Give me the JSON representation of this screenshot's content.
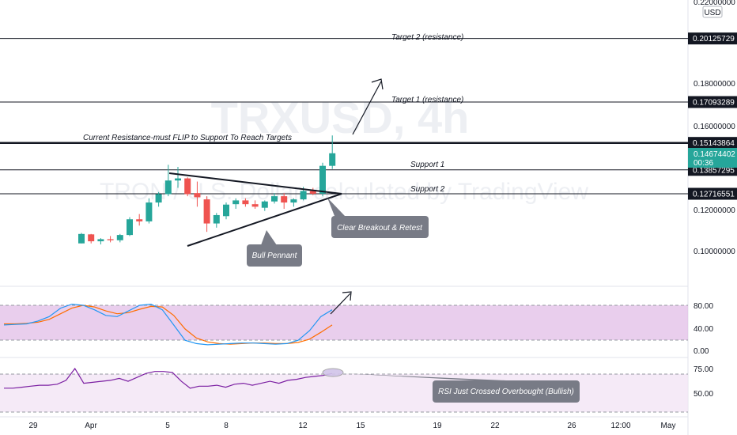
{
  "watermark": {
    "symbol": "TRXUSD, 4h",
    "subtitle": "TRON / U.S. Dollar, calculated by TradingView"
  },
  "price_axis": {
    "currency": "USD",
    "top_partial": "0.22000000",
    "labels": [
      "0.18000000",
      "0.16000000",
      "0.12000000",
      "0.10000000"
    ],
    "tagged_levels": [
      "0.20125729",
      "0.17093289",
      "0.15143864",
      "0.13857295",
      "0.12716551"
    ],
    "current_price": "0.14674402",
    "countdown": "00:36"
  },
  "stoch_axis": {
    "labels": [
      "80.00",
      "40.00",
      "0.00"
    ]
  },
  "rsi_axis": {
    "labels": [
      "75.00",
      "50.00"
    ]
  },
  "time_axis": {
    "labels": [
      "29",
      "Apr",
      "5",
      "8",
      "12",
      "15",
      "19",
      "22",
      "26",
      "12:00",
      "May"
    ]
  },
  "annotations": {
    "target2": "Target 2 (resistance)",
    "target1": "Target 1 (resistance)",
    "resistance": "Current Resistance-must FLIP to Support To Reach Targets",
    "support1": "Support 1",
    "support2": "Support 2",
    "breakout": "Clear Breakout & Retest",
    "pennant": "Bull Pennant",
    "rsi_note": "RSI Just Crossed Overbought (Bullish)"
  },
  "colors": {
    "up": "#26a69a",
    "down": "#ef5350",
    "stoch_k": "#2196f3",
    "stoch_d": "#ff6d00",
    "rsi": "#7b1fa2",
    "band": "#e1bee7",
    "callout": "#787b86",
    "teal_tag": "#26a69a"
  },
  "chart_data": {
    "type": "candlestick",
    "candles": [
      {
        "o": 0.1035,
        "h": 0.1085,
        "l": 0.1035,
        "c": 0.108
      },
      {
        "o": 0.1078,
        "h": 0.108,
        "l": 0.1035,
        "c": 0.1045
      },
      {
        "o": 0.1045,
        "h": 0.106,
        "l": 0.103,
        "c": 0.1055
      },
      {
        "o": 0.1055,
        "h": 0.107,
        "l": 0.104,
        "c": 0.105
      },
      {
        "o": 0.105,
        "h": 0.108,
        "l": 0.104,
        "c": 0.1075
      },
      {
        "o": 0.1075,
        "h": 0.116,
        "l": 0.107,
        "c": 0.115
      },
      {
        "o": 0.115,
        "h": 0.1175,
        "l": 0.112,
        "c": 0.114
      },
      {
        "o": 0.114,
        "h": 0.125,
        "l": 0.113,
        "c": 0.123
      },
      {
        "o": 0.123,
        "h": 0.128,
        "l": 0.121,
        "c": 0.127
      },
      {
        "o": 0.127,
        "h": 0.141,
        "l": 0.126,
        "c": 0.1335
      },
      {
        "o": 0.1335,
        "h": 0.14,
        "l": 0.13,
        "c": 0.1345
      },
      {
        "o": 0.1345,
        "h": 0.135,
        "l": 0.126,
        "c": 0.127
      },
      {
        "o": 0.1275,
        "h": 0.133,
        "l": 0.121,
        "c": 0.1255
      },
      {
        "o": 0.1245,
        "h": 0.126,
        "l": 0.109,
        "c": 0.113
      },
      {
        "o": 0.113,
        "h": 0.118,
        "l": 0.111,
        "c": 0.117
      },
      {
        "o": 0.1165,
        "h": 0.123,
        "l": 0.115,
        "c": 0.122
      },
      {
        "o": 0.1222,
        "h": 0.125,
        "l": 0.12,
        "c": 0.124
      },
      {
        "o": 0.124,
        "h": 0.125,
        "l": 0.121,
        "c": 0.1222
      },
      {
        "o": 0.1222,
        "h": 0.124,
        "l": 0.12,
        "c": 0.121
      },
      {
        "o": 0.1205,
        "h": 0.124,
        "l": 0.119,
        "c": 0.1235
      },
      {
        "o": 0.1235,
        "h": 0.1275,
        "l": 0.1225,
        "c": 0.126
      },
      {
        "o": 0.126,
        "h": 0.1275,
        "l": 0.12,
        "c": 0.123
      },
      {
        "o": 0.123,
        "h": 0.125,
        "l": 0.121,
        "c": 0.1245
      },
      {
        "o": 0.1245,
        "h": 0.1305,
        "l": 0.124,
        "c": 0.1285
      },
      {
        "o": 0.1285,
        "h": 0.13,
        "l": 0.1265,
        "c": 0.1272
      },
      {
        "o": 0.1272,
        "h": 0.142,
        "l": 0.126,
        "c": 0.1405
      },
      {
        "o": 0.1405,
        "h": 0.155,
        "l": 0.139,
        "c": 0.1465
      }
    ],
    "stoch_k": [
      45,
      46,
      47,
      52,
      60,
      75,
      82,
      80,
      72,
      62,
      60,
      70,
      80,
      82,
      72,
      45,
      18,
      12,
      10,
      11,
      12,
      13,
      13,
      12,
      11,
      12,
      18,
      35,
      60,
      72
    ],
    "stoch_d": [
      47,
      47,
      48,
      50,
      55,
      65,
      75,
      80,
      77,
      70,
      65,
      67,
      73,
      78,
      77,
      62,
      38,
      22,
      15,
      12,
      11,
      12,
      13,
      13,
      12,
      12,
      14,
      20,
      32,
      45
    ],
    "rsi": [
      55,
      55,
      56,
      57,
      58,
      58,
      59,
      63,
      75,
      60,
      61,
      62,
      63,
      65,
      62,
      66,
      70,
      72,
      72,
      71,
      62,
      55,
      57,
      57,
      58,
      56,
      59,
      60,
      58,
      60,
      62,
      60,
      63,
      64,
      66,
      67,
      68,
      70
    ],
    "levels": [
      0.20125729,
      0.17093289,
      0.15143864,
      0.13857295,
      0.12716551
    ]
  }
}
